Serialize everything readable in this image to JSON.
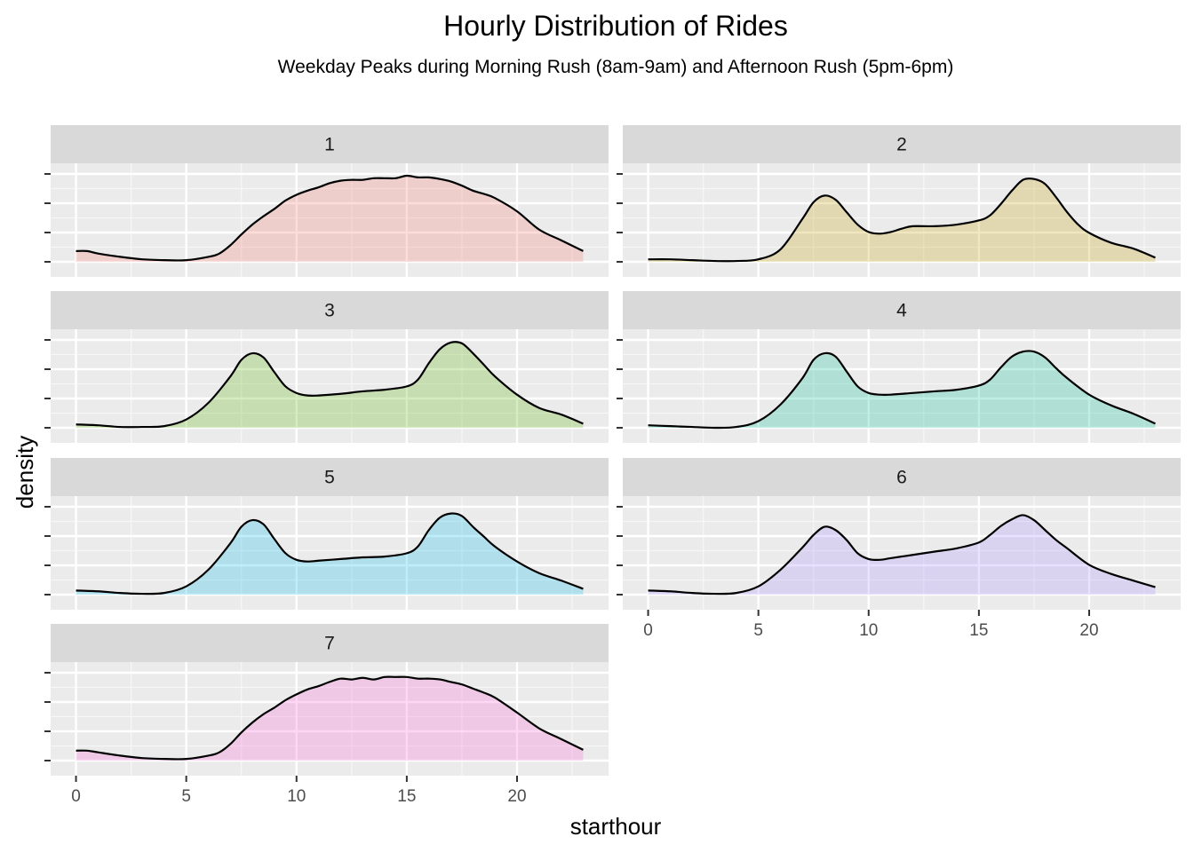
{
  "title": "Hourly Distribution of Rides",
  "subtitle": "Weekday Peaks during Morning Rush (8am-9am) and Afternoon Rush (5pm-6pm)",
  "chart_data": {
    "type": "area",
    "chart_kind": "faceted density plot",
    "xlabel": "starthour",
    "ylabel": "density",
    "xlim": [
      -1.15,
      24.15
    ],
    "x_ticks": [
      0,
      5,
      10,
      15,
      20
    ],
    "x_tick_labels": [
      "0",
      "5",
      "10",
      "15",
      "20"
    ],
    "y_tick_labels_shown": false,
    "grid": true,
    "legend": "none",
    "facet_layout": {
      "columns": 2,
      "rows": 4
    },
    "series": [
      {
        "name": "1",
        "fill": "#F8766D",
        "x": [
          0,
          0.5,
          1,
          2,
          3,
          4,
          5,
          6,
          6.5,
          7,
          7.5,
          8,
          8.5,
          9,
          9.5,
          10,
          10.5,
          11,
          11.5,
          12,
          12.5,
          13,
          13.5,
          14,
          14.5,
          15,
          15.5,
          16,
          16.5,
          17,
          17.5,
          18,
          18.5,
          19,
          20,
          21,
          22,
          23
        ],
        "y": [
          0.13,
          0.13,
          0.1,
          0.06,
          0.03,
          0.02,
          0.02,
          0.06,
          0.1,
          0.2,
          0.33,
          0.45,
          0.55,
          0.64,
          0.74,
          0.81,
          0.86,
          0.9,
          0.95,
          0.98,
          0.99,
          0.99,
          1.01,
          1.01,
          1.01,
          1.04,
          1.02,
          1.02,
          1.0,
          0.97,
          0.92,
          0.86,
          0.82,
          0.77,
          0.61,
          0.39,
          0.26,
          0.13
        ]
      },
      {
        "name": "2",
        "fill": "#C49A00",
        "x": [
          0,
          1,
          2,
          3,
          4,
          5,
          6,
          7,
          7.5,
          8,
          8.5,
          9,
          9.5,
          10,
          10.5,
          11,
          11.5,
          12,
          13,
          14,
          15,
          15.5,
          16,
          16.5,
          17,
          17.5,
          18,
          18.5,
          19,
          19.5,
          20,
          21,
          22,
          23
        ],
        "y": [
          0.03,
          0.03,
          0.02,
          0.01,
          0.01,
          0.03,
          0.15,
          0.52,
          0.72,
          0.8,
          0.75,
          0.6,
          0.45,
          0.36,
          0.34,
          0.36,
          0.4,
          0.43,
          0.43,
          0.45,
          0.5,
          0.56,
          0.7,
          0.86,
          0.99,
          1.0,
          0.94,
          0.78,
          0.6,
          0.45,
          0.35,
          0.23,
          0.16,
          0.05
        ]
      },
      {
        "name": "3",
        "fill": "#53B400",
        "x": [
          0,
          1,
          2,
          3,
          4,
          5,
          6,
          7,
          7.5,
          8,
          8.5,
          9,
          9.5,
          10,
          10.5,
          11,
          12,
          13,
          14,
          15,
          15.5,
          16,
          16.5,
          17,
          17.5,
          18,
          18.5,
          19,
          20,
          21,
          22,
          23
        ],
        "y": [
          0.04,
          0.03,
          0.01,
          0.01,
          0.02,
          0.1,
          0.3,
          0.62,
          0.82,
          0.9,
          0.85,
          0.67,
          0.5,
          0.42,
          0.39,
          0.39,
          0.41,
          0.44,
          0.46,
          0.5,
          0.58,
          0.78,
          0.95,
          1.03,
          1.02,
          0.9,
          0.76,
          0.62,
          0.4,
          0.24,
          0.16,
          0.05
        ]
      },
      {
        "name": "4",
        "fill": "#00C094",
        "x": [
          0,
          1,
          2,
          3,
          4,
          5,
          6,
          7,
          7.5,
          8,
          8.5,
          9,
          9.5,
          10,
          10.5,
          11,
          12,
          13,
          14,
          15,
          15.5,
          16,
          16.5,
          17,
          17.5,
          18,
          18.5,
          19,
          20,
          21,
          22,
          23
        ],
        "y": [
          0.03,
          0.02,
          0.01,
          0.0,
          0.01,
          0.08,
          0.28,
          0.6,
          0.82,
          0.9,
          0.86,
          0.68,
          0.5,
          0.42,
          0.4,
          0.4,
          0.42,
          0.44,
          0.46,
          0.51,
          0.58,
          0.73,
          0.86,
          0.92,
          0.92,
          0.85,
          0.72,
          0.6,
          0.4,
          0.27,
          0.17,
          0.05
        ]
      },
      {
        "name": "5",
        "fill": "#00B6EB",
        "x": [
          0,
          1,
          2,
          3,
          4,
          5,
          6,
          7,
          7.5,
          8,
          8.5,
          9,
          9.5,
          10,
          10.5,
          11,
          12,
          13,
          14,
          15,
          15.5,
          16,
          16.5,
          17,
          17.5,
          18,
          18.5,
          19,
          20,
          21,
          22,
          23
        ],
        "y": [
          0.05,
          0.04,
          0.02,
          0.01,
          0.02,
          0.1,
          0.3,
          0.62,
          0.82,
          0.9,
          0.85,
          0.67,
          0.5,
          0.42,
          0.4,
          0.41,
          0.43,
          0.45,
          0.46,
          0.5,
          0.58,
          0.78,
          0.93,
          0.98,
          0.95,
          0.82,
          0.7,
          0.58,
          0.4,
          0.26,
          0.17,
          0.07
        ]
      },
      {
        "name": "6",
        "fill": "#A58AFF",
        "x": [
          0,
          1,
          2,
          3,
          4,
          5,
          6,
          7,
          7.5,
          8,
          8.5,
          9,
          9.5,
          10,
          10.5,
          11,
          12,
          13,
          14,
          15,
          15.5,
          16,
          16.5,
          17,
          17.5,
          18,
          18.5,
          19,
          20,
          21,
          22,
          23
        ],
        "y": [
          0.05,
          0.04,
          0.02,
          0.01,
          0.02,
          0.1,
          0.3,
          0.57,
          0.72,
          0.82,
          0.78,
          0.66,
          0.5,
          0.43,
          0.42,
          0.44,
          0.48,
          0.52,
          0.56,
          0.63,
          0.72,
          0.83,
          0.91,
          0.96,
          0.9,
          0.78,
          0.66,
          0.56,
          0.36,
          0.25,
          0.17,
          0.09
        ]
      },
      {
        "name": "7",
        "fill": "#FB61D7",
        "x": [
          0,
          0.5,
          1,
          2,
          3,
          4,
          5,
          6,
          6.5,
          7,
          7.5,
          8,
          8.5,
          9,
          9.5,
          10,
          10.5,
          11,
          11.5,
          12,
          12.5,
          13,
          13.5,
          14,
          14.5,
          15,
          15.5,
          16,
          16.5,
          17,
          17.5,
          18,
          18.5,
          19,
          20,
          21,
          22,
          23
        ],
        "y": [
          0.12,
          0.12,
          0.1,
          0.06,
          0.03,
          0.02,
          0.02,
          0.06,
          0.1,
          0.2,
          0.34,
          0.46,
          0.56,
          0.64,
          0.73,
          0.8,
          0.86,
          0.9,
          0.95,
          0.99,
          0.98,
          1.0,
          0.98,
          1.01,
          1.01,
          1.01,
          0.99,
          0.99,
          0.98,
          0.95,
          0.92,
          0.87,
          0.82,
          0.76,
          0.58,
          0.39,
          0.26,
          0.13
        ]
      }
    ]
  }
}
